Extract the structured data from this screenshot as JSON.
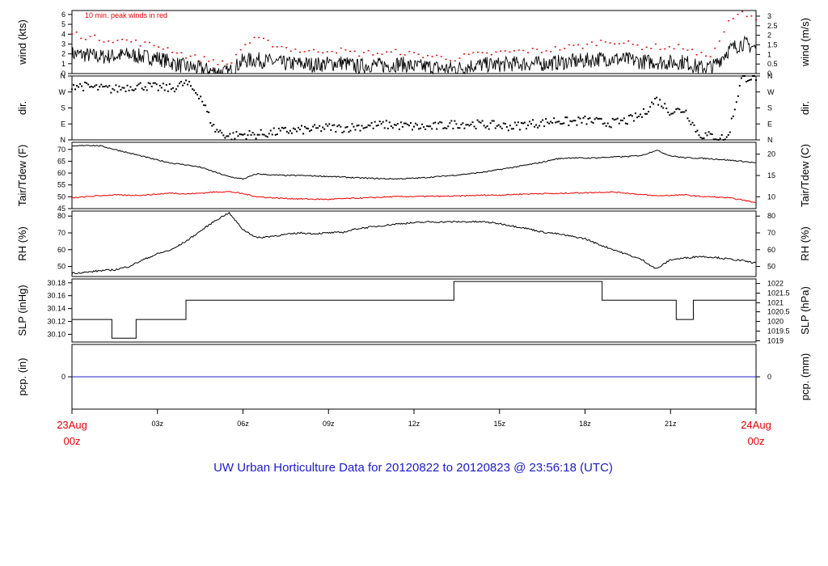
{
  "footer": "UW Urban Horticulture Data for 20120822  to  20120823 @ 23:56:18  (UTC)",
  "x_axis": {
    "start_label_top": "23Aug",
    "start_label_bottom": "00z",
    "end_label_top": "24Aug",
    "end_label_bottom": "00z",
    "ticks": [
      "03z",
      "06z",
      "09z",
      "12z",
      "15z",
      "18z",
      "21z"
    ],
    "tick_hours": [
      3,
      6,
      9,
      12,
      15,
      18,
      21
    ],
    "range_hours": [
      0,
      24
    ],
    "edge_color": "#ee0000"
  },
  "chart_data": [
    {
      "id": "wind",
      "type": "line",
      "ylabel_left": "wind (kts)",
      "ylabel_right": "wind (m/s)",
      "annotation": "10 min. peak winds in red",
      "left_ticks": [
        "0",
        "1",
        "2",
        "3",
        "4",
        "5",
        "6"
      ],
      "left_tick_values": [
        0,
        1,
        2,
        3,
        4,
        5,
        6
      ],
      "ylim": [
        0,
        6.4
      ],
      "right_ticks": [
        "0",
        "0.5",
        "1",
        "1.5",
        "2",
        "2.5",
        "3"
      ],
      "right_tick_values_kts": [
        0,
        0.97,
        1.94,
        2.92,
        3.89,
        4.86,
        5.83
      ],
      "series": [
        {
          "values_hourly": [
            2.0,
            1.9,
            1.7,
            1.8,
            1.9,
            1.7,
            1.6,
            1.1,
            0.7,
            0.5,
            0.2,
            0.1,
            1.3,
            1.4,
            1.2,
            1.0,
            1.0,
            0.9,
            1.0,
            1.1,
            0.7,
            0.9,
            0.8,
            1.0,
            0.7,
            0.7,
            0.5,
            0.5,
            0.8,
            0.9,
            0.9,
            1.0,
            1.0,
            1.0,
            1.1,
            1.2,
            1.3,
            1.5,
            1.5,
            1.4,
            1.2,
            1.2,
            1.1,
            1.2,
            0.6,
            0.7,
            2.3,
            3.1,
            2.6
          ],
          "color": "#000000"
        },
        {
          "values_hourly": [
            4.1,
            3.7,
            3.5,
            3.4,
            3.3,
            3.0,
            2.8,
            2.4,
            1.8,
            1.5,
            1.3,
            0.8,
            2.8,
            3.5,
            3.0,
            2.6,
            2.3,
            2.2,
            2.4,
            2.3,
            2.0,
            2.1,
            2.0,
            2.2,
            1.9,
            1.8,
            1.6,
            1.5,
            1.9,
            1.9,
            2.1,
            2.2,
            2.3,
            2.3,
            2.5,
            2.7,
            2.8,
            3.2,
            3.3,
            3.0,
            2.7,
            2.7,
            2.6,
            2.7,
            1.8,
            2.0,
            5.0,
            6.2,
            5.3
          ],
          "color": "#ee0000",
          "style": "dots"
        }
      ]
    },
    {
      "id": "dir",
      "type": "scatter",
      "ylabel_left": "dir.",
      "ylabel_right": "dir.",
      "left_ticks": [
        "N",
        "E",
        "S",
        "W",
        "N"
      ],
      "right_ticks": [
        "N",
        "E",
        "S",
        "W",
        "N"
      ],
      "tick_values": [
        0,
        90,
        180,
        270,
        360
      ],
      "ylim": [
        0,
        360
      ],
      "series": [
        {
          "values_hourly": [
            310,
            300,
            290,
            285,
            300,
            305,
            295,
            290,
            320,
            250,
            60,
            20,
            30,
            30,
            40,
            50,
            55,
            60,
            70,
            65,
            75,
            80,
            85,
            80,
            75,
            70,
            80,
            90,
            90,
            85,
            80,
            75,
            90,
            95,
            110,
            100,
            110,
            100,
            95,
            110,
            140,
            230,
            160,
            170,
            30,
            20,
            5,
            350,
            355
          ],
          "color": "#000000"
        }
      ]
    },
    {
      "id": "temp",
      "type": "line",
      "ylabel_left": "Tair/Tdew (F)",
      "ylabel_right": "Tair/Tdew (C)",
      "left_ticks": [
        "45",
        "50",
        "55",
        "60",
        "65",
        "70"
      ],
      "left_tick_values": [
        45,
        50,
        55,
        60,
        65,
        70
      ],
      "ylim": [
        45,
        73
      ],
      "right_ticks": [
        "10",
        "15",
        "20"
      ],
      "right_tick_values_f": [
        50,
        59,
        68
      ],
      "series": [
        {
          "values_hourly": [
            71.2,
            71.8,
            71.5,
            70.0,
            68.5,
            67.0,
            65.5,
            64.2,
            63.5,
            62.5,
            60.5,
            58.5,
            57.5,
            59.7,
            59.2,
            59.0,
            59.0,
            58.8,
            58.6,
            58.3,
            58.0,
            57.8,
            57.6,
            57.6,
            57.8,
            58.2,
            58.7,
            59.2,
            59.8,
            60.5,
            61.5,
            62.5,
            63.5,
            64.6,
            66.0,
            66.5,
            66.3,
            66.5,
            66.8,
            67.0,
            67.5,
            69.7,
            67.3,
            66.5,
            66.3,
            66.0,
            65.5,
            65.0,
            64.3
          ],
          "color": "#000000"
        },
        {
          "values_hourly": [
            49.5,
            50.0,
            50.5,
            50.8,
            50.6,
            50.7,
            51.1,
            51.6,
            51.2,
            51.5,
            52.0,
            52.2,
            51.3,
            50.0,
            49.6,
            49.3,
            49.1,
            49.0,
            48.9,
            49.2,
            49.4,
            49.6,
            49.9,
            50.1,
            50.1,
            50.2,
            50.2,
            50.3,
            50.5,
            50.7,
            50.7,
            51.0,
            51.2,
            51.4,
            51.3,
            51.6,
            51.7,
            51.9,
            52.0,
            51.5,
            50.9,
            50.4,
            50.6,
            50.8,
            50.2,
            49.9,
            49.6,
            48.7,
            47.5
          ],
          "color": "#ee0000"
        }
      ]
    },
    {
      "id": "rh",
      "type": "line",
      "ylabel_left": "RH (%)",
      "ylabel_right": "RH (%)",
      "left_ticks": [
        "50",
        "60",
        "70",
        "80"
      ],
      "left_tick_values": [
        50,
        60,
        70,
        80
      ],
      "ylim": [
        44,
        83
      ],
      "right_ticks": [
        "50",
        "60",
        "70",
        "80"
      ],
      "right_tick_values": [
        50,
        60,
        70,
        80
      ],
      "series": [
        {
          "values_hourly": [
            46.0,
            46.5,
            47.5,
            48.0,
            50.0,
            54.0,
            57.5,
            60.0,
            65.0,
            71.0,
            77.0,
            82.0,
            72.0,
            67.0,
            68.0,
            69.0,
            70.0,
            69.5,
            70.0,
            70.3,
            72.5,
            73.5,
            74.5,
            75.5,
            76.0,
            76.5,
            76.5,
            76.6,
            76.6,
            76.5,
            75.5,
            74.0,
            72.5,
            70.5,
            69.5,
            68.0,
            66.5,
            63.0,
            60.0,
            57.0,
            54.0,
            48.5,
            54.0,
            55.0,
            56.0,
            55.5,
            54.5,
            53.5,
            52.0
          ],
          "color": "#000000"
        }
      ]
    },
    {
      "id": "slp",
      "type": "line",
      "ylabel_left": "SLP (inHg)",
      "ylabel_right": "SLP (hPa)",
      "left_ticks": [
        "30.10",
        "30.12",
        "30.14",
        "30.16",
        "30.18"
      ],
      "left_tick_values": [
        30.1,
        30.12,
        30.14,
        30.16,
        30.18
      ],
      "ylim": [
        30.088,
        30.186
      ],
      "right_ticks": [
        "1019",
        "1019.5",
        "1020",
        "1020.5",
        "1021",
        "1021.5",
        "1022"
      ],
      "right_tick_values_inhg": [
        30.09,
        30.105,
        30.12,
        30.135,
        30.149,
        30.164,
        30.179
      ],
      "series": [
        {
          "steps": [
            [
              0,
              30.123
            ],
            [
              1.4,
              30.094
            ],
            [
              2.25,
              30.123
            ],
            [
              4.0,
              30.153
            ],
            [
              13.4,
              30.182
            ],
            [
              18.6,
              30.153
            ],
            [
              21.2,
              30.123
            ],
            [
              21.8,
              30.153
            ],
            [
              24,
              30.153
            ]
          ],
          "color": "#000000"
        }
      ]
    },
    {
      "id": "pcp",
      "type": "line",
      "ylabel_left": "pcp. (in)",
      "ylabel_right": "pcp. (mm)",
      "left_ticks": [
        "0"
      ],
      "right_ticks": [
        "0"
      ],
      "ylim": [
        -1,
        1
      ],
      "series": [
        {
          "values_hourly": [
            0,
            0
          ],
          "color": "#2222cc"
        }
      ]
    }
  ]
}
